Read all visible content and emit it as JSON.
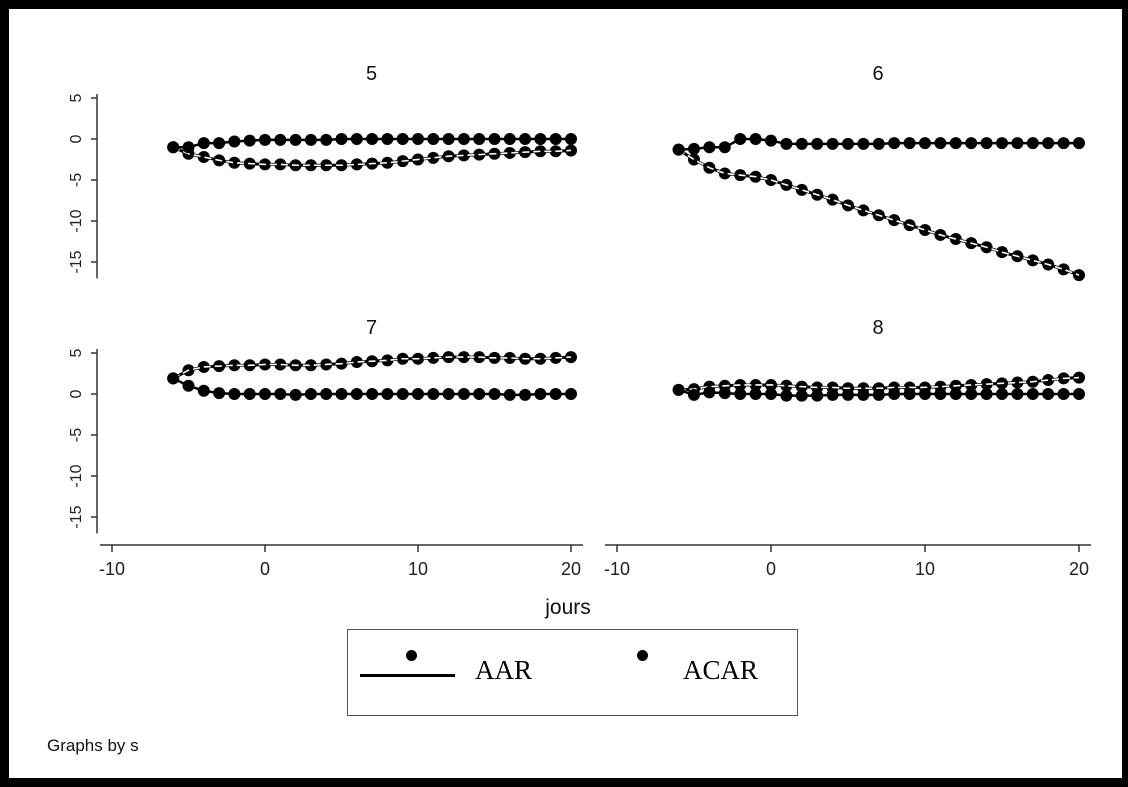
{
  "chart_data": {
    "type": "line",
    "xlabel": "jours",
    "ylabel": "",
    "xlim": [
      -10,
      20
    ],
    "ylim": [
      -17,
      5
    ],
    "x_ticks": [
      -10,
      0,
      10,
      20
    ],
    "y_ticks": [
      5,
      0,
      -5,
      -10,
      -15
    ],
    "grid": false,
    "legend_position": "bottom",
    "note": "Graphs by s",
    "series_names": [
      "AAR",
      "ACAR"
    ],
    "panels": [
      {
        "title": "5",
        "x": [
          -6,
          -5,
          -4,
          -3,
          -2,
          -1,
          0,
          1,
          2,
          3,
          4,
          5,
          6,
          7,
          8,
          9,
          10,
          11,
          12,
          13,
          14,
          15,
          16,
          17,
          18,
          19,
          20
        ],
        "series": [
          {
            "name": "AAR",
            "values": [
              -1,
              -1,
              -0.5,
              -0.5,
              -0.3,
              -0.2,
              -0.1,
              -0.1,
              -0.1,
              -0.1,
              -0.1,
              0,
              0,
              0,
              0,
              0,
              0,
              0,
              0,
              0,
              0,
              0,
              0,
              0,
              0,
              0,
              0
            ]
          },
          {
            "name": "ACAR",
            "values": [
              -1,
              -1.8,
              -2.2,
              -2.6,
              -2.9,
              -3.0,
              -3.1,
              -3.1,
              -3.2,
              -3.2,
              -3.2,
              -3.2,
              -3.1,
              -3.0,
              -2.9,
              -2.7,
              -2.5,
              -2.3,
              -2.1,
              -2.0,
              -1.9,
              -1.8,
              -1.7,
              -1.6,
              -1.5,
              -1.5,
              -1.4
            ]
          }
        ]
      },
      {
        "title": "6",
        "x": [
          -6,
          -5,
          -4,
          -3,
          -2,
          -1,
          0,
          1,
          2,
          3,
          4,
          5,
          6,
          7,
          8,
          9,
          10,
          11,
          12,
          13,
          14,
          15,
          16,
          17,
          18,
          19,
          20
        ],
        "series": [
          {
            "name": "AAR",
            "values": [
              -1.3,
              -1.2,
              -1.0,
              -1.0,
              0,
              0,
              -0.2,
              -0.6,
              -0.6,
              -0.6,
              -0.6,
              -0.6,
              -0.6,
              -0.6,
              -0.5,
              -0.5,
              -0.5,
              -0.5,
              -0.5,
              -0.5,
              -0.5,
              -0.5,
              -0.5,
              -0.5,
              -0.5,
              -0.5,
              -0.5
            ]
          },
          {
            "name": "ACAR",
            "values": [
              -1.3,
              -2.5,
              -3.5,
              -4.2,
              -4.4,
              -4.6,
              -5.0,
              -5.6,
              -6.2,
              -6.8,
              -7.4,
              -8.1,
              -8.7,
              -9.3,
              -9.9,
              -10.5,
              -11.1,
              -11.7,
              -12.2,
              -12.7,
              -13.2,
              -13.8,
              -14.3,
              -14.8,
              -15.3,
              -15.9,
              -16.6
            ]
          }
        ]
      },
      {
        "title": "7",
        "x": [
          -6,
          -5,
          -4,
          -3,
          -2,
          -1,
          0,
          1,
          2,
          3,
          4,
          5,
          6,
          7,
          8,
          9,
          10,
          11,
          12,
          13,
          14,
          15,
          16,
          17,
          18,
          19,
          20
        ],
        "series": [
          {
            "name": "AAR",
            "values": [
              1.9,
              1.0,
              0.4,
              0.1,
              0,
              0,
              0,
              0,
              -0.1,
              0,
              0,
              0,
              0,
              0,
              0,
              0,
              0,
              0,
              0,
              0,
              0,
              0,
              -0.1,
              -0.1,
              0,
              0,
              0
            ]
          },
          {
            "name": "ACAR",
            "values": [
              1.9,
              2.9,
              3.3,
              3.4,
              3.5,
              3.5,
              3.6,
              3.6,
              3.5,
              3.5,
              3.6,
              3.7,
              3.9,
              4.0,
              4.1,
              4.3,
              4.3,
              4.4,
              4.5,
              4.5,
              4.5,
              4.4,
              4.4,
              4.3,
              4.3,
              4.4,
              4.5
            ]
          }
        ]
      },
      {
        "title": "8",
        "x": [
          -6,
          -5,
          -4,
          -3,
          -2,
          -1,
          0,
          1,
          2,
          3,
          4,
          5,
          6,
          7,
          8,
          9,
          10,
          11,
          12,
          13,
          14,
          15,
          16,
          17,
          18,
          19,
          20
        ],
        "series": [
          {
            "name": "AAR",
            "values": [
              0.5,
              -0.1,
              0.2,
              0.1,
              0,
              0,
              0,
              -0.2,
              -0.2,
              -0.2,
              -0.1,
              -0.1,
              -0.1,
              -0.1,
              0,
              0,
              0,
              0,
              0,
              0,
              0,
              0,
              0,
              0,
              0,
              0,
              0
            ]
          },
          {
            "name": "ACAR",
            "values": [
              0.5,
              0.6,
              0.9,
              1.0,
              1.1,
              1.1,
              1.1,
              1.0,
              0.9,
              0.8,
              0.8,
              0.7,
              0.7,
              0.7,
              0.8,
              0.8,
              0.8,
              0.9,
              1.0,
              1.1,
              1.2,
              1.3,
              1.4,
              1.5,
              1.7,
              1.9,
              2.0
            ]
          }
        ]
      }
    ]
  }
}
